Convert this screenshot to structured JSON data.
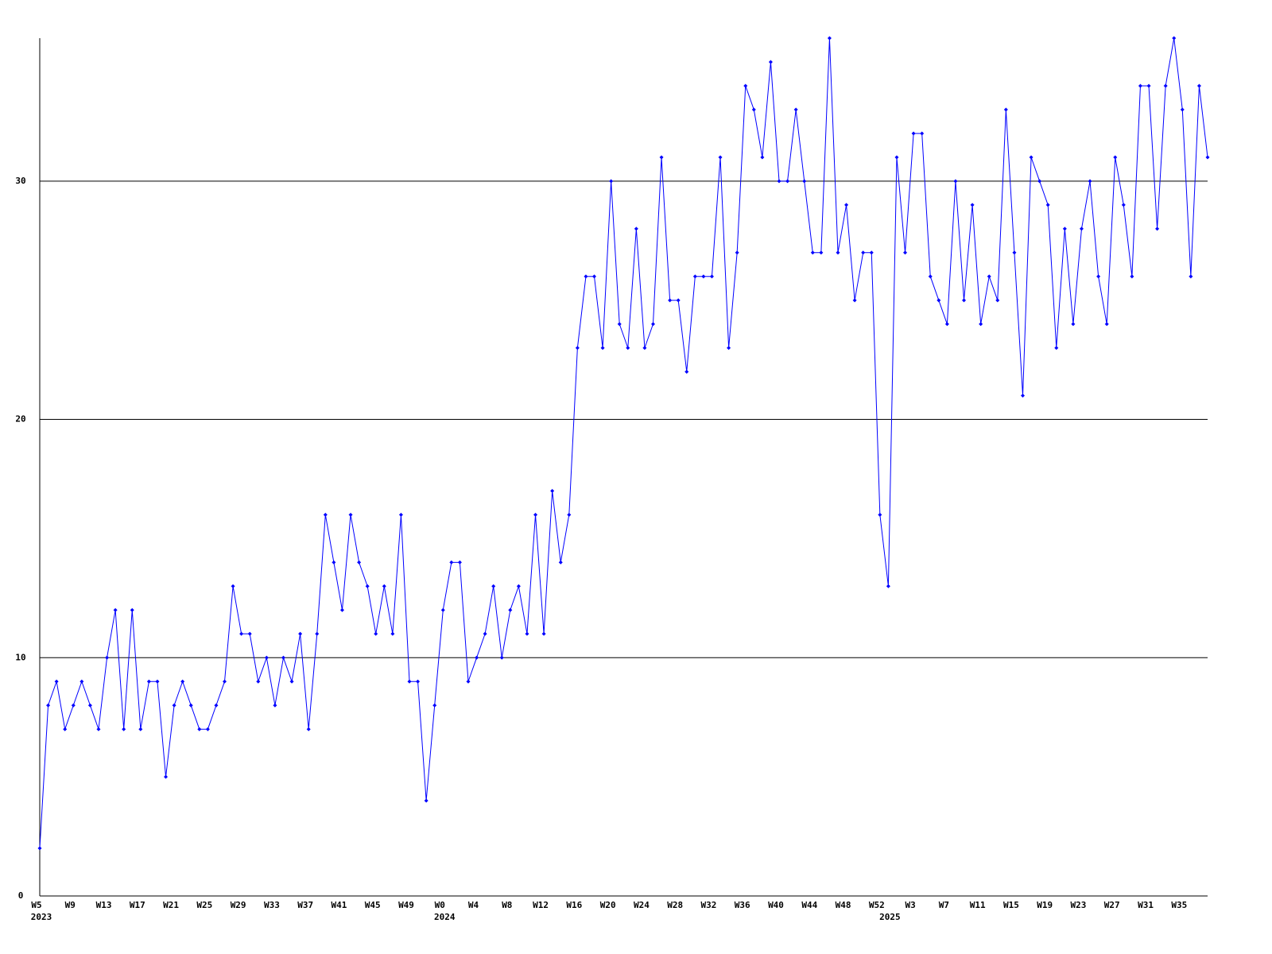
{
  "chart_data": {
    "type": "line",
    "categories": [
      "W5",
      null,
      null,
      null,
      "W9",
      null,
      null,
      null,
      "W13",
      null,
      null,
      null,
      "W17",
      null,
      null,
      null,
      "W21",
      null,
      null,
      null,
      "W25",
      null,
      null,
      null,
      "W29",
      null,
      null,
      null,
      "W33",
      null,
      null,
      null,
      "W37",
      null,
      null,
      null,
      "W41",
      null,
      null,
      null,
      "W45",
      null,
      null,
      null,
      "W49",
      null,
      null,
      null,
      "W0",
      null,
      null,
      null,
      "W4",
      null,
      null,
      null,
      "W8",
      null,
      null,
      null,
      "W12",
      null,
      null,
      null,
      "W16",
      null,
      null,
      null,
      "W20",
      null,
      null,
      null,
      "W24",
      null,
      null,
      null,
      "W28",
      null,
      null,
      null,
      "W32",
      null,
      null,
      null,
      "W36",
      null,
      null,
      null,
      "W40",
      null,
      null,
      null,
      "W44",
      null,
      null,
      null,
      "W48",
      null,
      null,
      null,
      "W52",
      null,
      null,
      null,
      "W3",
      null,
      null,
      null,
      "W7",
      null,
      null,
      null,
      "W11",
      null,
      null,
      null,
      "W15",
      null,
      null,
      null,
      "W19",
      null,
      null,
      null,
      "W23",
      null,
      null,
      null,
      "W27",
      null,
      null,
      null,
      "W31",
      null,
      null,
      null,
      "W35",
      null,
      null,
      null
    ],
    "year_labels": [
      "2023",
      null,
      null,
      null,
      null,
      null,
      null,
      null,
      null,
      null,
      null,
      null,
      null,
      null,
      null,
      null,
      null,
      null,
      null,
      null,
      null,
      null,
      null,
      null,
      null,
      null,
      null,
      null,
      null,
      null,
      null,
      null,
      null,
      null,
      null,
      null,
      null,
      null,
      null,
      null,
      null,
      null,
      null,
      null,
      null,
      null,
      null,
      null,
      "2024",
      null,
      null,
      null,
      null,
      null,
      null,
      null,
      null,
      null,
      null,
      null,
      null,
      null,
      null,
      null,
      null,
      null,
      null,
      null,
      null,
      null,
      null,
      null,
      null,
      null,
      null,
      null,
      null,
      null,
      null,
      null,
      null,
      null,
      null,
      null,
      null,
      null,
      null,
      null,
      null,
      null,
      null,
      null,
      null,
      null,
      null,
      null,
      null,
      null,
      null,
      null,
      null,
      "2025",
      null,
      null,
      null,
      null,
      null,
      null,
      null,
      null,
      null,
      null,
      null,
      null,
      null,
      null,
      null,
      null,
      null,
      null,
      null,
      null,
      null,
      null,
      null,
      null,
      null,
      null,
      null,
      null,
      null,
      null,
      null,
      null,
      null,
      null,
      null,
      null,
      null,
      null
    ],
    "values": [
      2,
      8,
      9,
      7,
      8,
      9,
      8,
      7,
      10,
      12,
      7,
      12,
      7,
      9,
      9,
      5,
      8,
      9,
      8,
      7,
      7,
      8,
      9,
      13,
      11,
      11,
      9,
      10,
      8,
      10,
      9,
      11,
      7,
      11,
      16,
      14,
      12,
      16,
      14,
      13,
      11,
      13,
      11,
      16,
      9,
      9,
      4,
      8,
      12,
      14,
      14,
      9,
      10,
      11,
      13,
      10,
      12,
      13,
      11,
      16,
      11,
      17,
      14,
      16,
      23,
      26,
      26,
      23,
      30,
      24,
      23,
      28,
      23,
      24,
      31,
      25,
      25,
      22,
      26,
      26,
      26,
      31,
      23,
      27,
      34,
      33,
      31,
      35,
      30,
      30,
      33,
      30,
      27,
      27,
      36,
      27,
      29,
      25,
      27,
      27,
      16,
      13,
      31,
      27,
      32,
      32,
      26,
      25,
      24,
      30,
      25,
      29,
      24,
      26,
      25,
      33,
      27,
      21,
      31,
      30,
      29,
      23,
      28,
      24,
      28,
      30,
      26,
      24,
      31,
      29,
      26,
      34,
      34,
      28,
      34,
      36,
      33,
      26,
      34,
      31
    ],
    "color": "#0000ff",
    "ylim": [
      0,
      36
    ],
    "yticks": [
      0,
      10,
      20,
      30
    ],
    "grid": true
  }
}
